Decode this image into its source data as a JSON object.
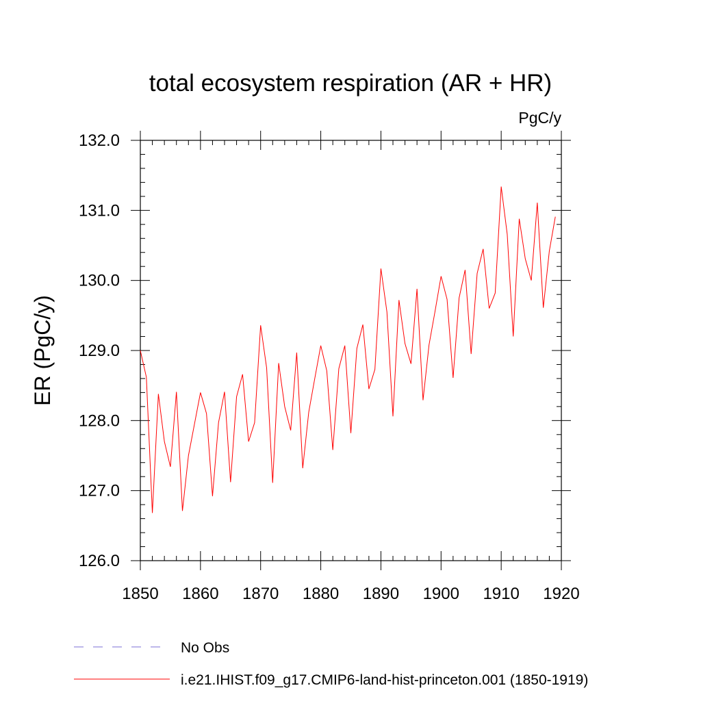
{
  "chart_data": {
    "type": "line",
    "title": "total ecosystem respiration (AR + HR)",
    "units": "PgC/y",
    "ylabel": "ER  (PgC/y)",
    "xlabel": "",
    "xlim": [
      1850,
      1920
    ],
    "ylim": [
      126.0,
      132.0
    ],
    "x_ticks": [
      1850,
      1860,
      1870,
      1880,
      1890,
      1900,
      1910,
      1920
    ],
    "y_ticks": [
      "126.0",
      "127.0",
      "128.0",
      "129.0",
      "130.0",
      "131.0",
      "132.0"
    ],
    "grid": false,
    "legend_position": "bottom",
    "legend": [
      {
        "label": "No Obs",
        "style": "dashed",
        "color": "#7b6fd6"
      },
      {
        "label": "i.e21.IHIST.f09_g17.CMIP6-land-hist-princeton.001 (1850-1919)",
        "style": "solid",
        "color": "#ff0000"
      }
    ],
    "series": [
      {
        "name": "i.e21.IHIST.f09_g17.CMIP6-land-hist-princeton.001 (1850-1919)",
        "color": "#ff0000",
        "x": [
          1850,
          1851,
          1852,
          1853,
          1854,
          1855,
          1856,
          1857,
          1858,
          1859,
          1860,
          1861,
          1862,
          1863,
          1864,
          1865,
          1866,
          1867,
          1868,
          1869,
          1870,
          1871,
          1872,
          1873,
          1874,
          1875,
          1876,
          1877,
          1878,
          1879,
          1880,
          1881,
          1882,
          1883,
          1884,
          1885,
          1886,
          1887,
          1888,
          1889,
          1890,
          1891,
          1892,
          1893,
          1894,
          1895,
          1896,
          1897,
          1898,
          1899,
          1900,
          1901,
          1902,
          1903,
          1904,
          1905,
          1906,
          1907,
          1908,
          1909,
          1910,
          1911,
          1912,
          1913,
          1914,
          1915,
          1916,
          1917,
          1918,
          1919
        ],
        "values": [
          129.0,
          128.62,
          126.68,
          128.38,
          127.7,
          127.34,
          128.41,
          126.71,
          127.5,
          127.95,
          128.4,
          128.1,
          126.92,
          127.97,
          128.41,
          127.12,
          128.34,
          128.66,
          127.7,
          127.97,
          129.36,
          128.75,
          127.11,
          128.82,
          128.2,
          127.86,
          128.97,
          127.32,
          128.12,
          128.6,
          129.07,
          128.71,
          127.58,
          128.74,
          129.07,
          127.82,
          129.03,
          129.37,
          128.45,
          128.73,
          130.17,
          129.55,
          128.06,
          129.72,
          129.1,
          128.81,
          129.88,
          128.29,
          129.08,
          129.56,
          130.06,
          129.73,
          128.61,
          129.75,
          130.15,
          128.95,
          130.1,
          130.45,
          129.6,
          129.82,
          131.34,
          130.66,
          129.2,
          130.88,
          130.31,
          130.0,
          131.11,
          129.61,
          130.42,
          130.91
        ]
      }
    ]
  }
}
